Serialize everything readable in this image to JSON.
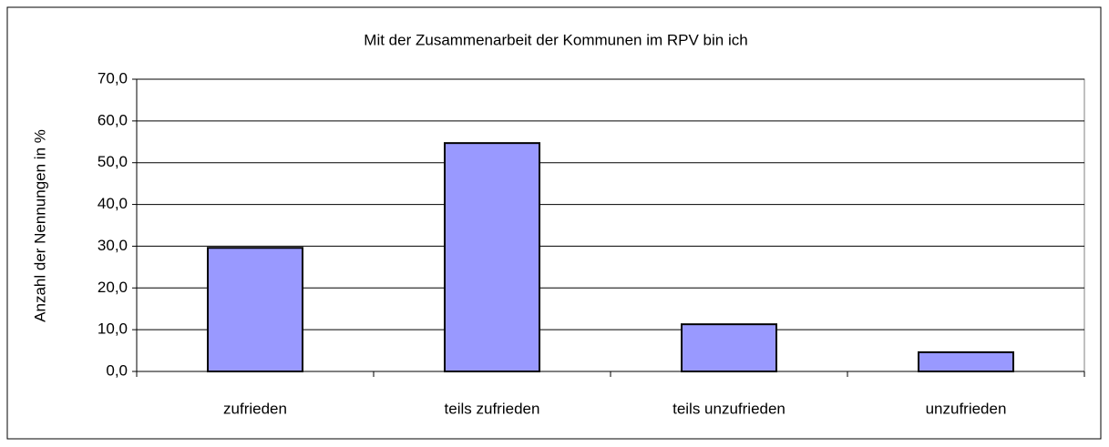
{
  "chart_data": {
    "type": "bar",
    "title": "Mit der Zusammenarbeit der Kommunen im RPV bin ich",
    "y_label": "Anzahl der Nennungen in %",
    "categories": [
      "zufrieden",
      "teils zufrieden",
      "teils unzufrieden",
      "unzufrieden"
    ],
    "values": [
      29.6,
      54.7,
      11.3,
      4.6
    ],
    "color": "#9999ff",
    "ylim": [
      0,
      70
    ],
    "yticks": [
      {
        "value": 0,
        "label": "0,0"
      },
      {
        "value": 10,
        "label": "10,0"
      },
      {
        "value": 20,
        "label": "20,0"
      },
      {
        "value": 30,
        "label": "30,0"
      },
      {
        "value": 40,
        "label": "40,0"
      },
      {
        "value": 50,
        "label": "50,0"
      },
      {
        "value": 60,
        "label": "60,0"
      },
      {
        "value": 70,
        "label": "70,0"
      }
    ],
    "grid": true
  }
}
